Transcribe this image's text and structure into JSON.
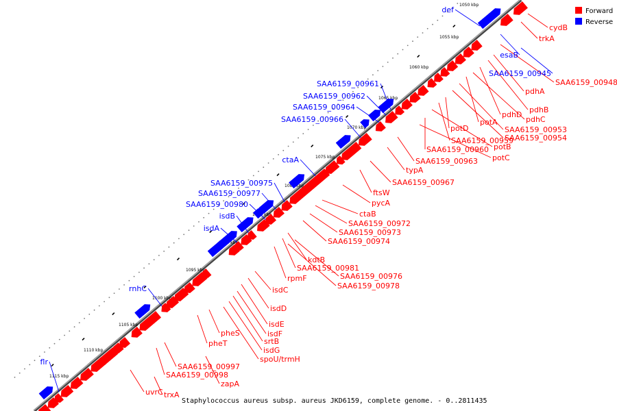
{
  "caption": "Staphylococcus aureus subsp. aureus JKD6159, complete genome. - 0..2811435",
  "legend": {
    "items": [
      {
        "label": "Forward",
        "color": "#ff0000"
      },
      {
        "label": "Reverse",
        "color": "#0000ff"
      }
    ]
  },
  "colors": {
    "forward": "#ff0000",
    "reverse": "#0000ff",
    "backbone": "#888888"
  },
  "kbp_labels": [
    "1050 kbp",
    "1055 kbp",
    "1060 kbp",
    "1065 kbp",
    "1070 kbp",
    "1075 kbp",
    "1080 kbp",
    "1085 kbp",
    "1090 kbp",
    "1095 kbp",
    "1100 kbp",
    "1105 kbp",
    "1110 kbp",
    "1115 kbp"
  ],
  "reverse_labels": [
    "def",
    "esaB",
    "SAA6159_00945",
    "SAA6159_00961",
    "SAA6159_00962",
    "SAA6159_00964",
    "SAA6159_00966",
    "ctaA",
    "SAA6159_00975",
    "SAA6159_00977",
    "SAA6159_00980",
    "isdB",
    "isdA",
    "rnhC",
    "flr"
  ],
  "forward_labels": [
    "cydB",
    "trkA",
    "SAA6159_00948",
    "pdhA",
    "pdhB",
    "pdhD",
    "pdhC",
    "potA",
    "SAA6159_00953",
    "SAA6159_00954",
    "potD",
    "SAA6159_00959",
    "potB",
    "SAA6159_00960",
    "potC",
    "SAA6159_00963",
    "typA",
    "SAA6159_00967",
    "ftsW",
    "pycA",
    "ctaB",
    "SAA6159_00972",
    "SAA6159_00973",
    "SAA6159_00974",
    "kdtB",
    "SAA6159_00981",
    "SAA6159_00976",
    "SAA6159_00978",
    "rpmF",
    "isdC",
    "isdD",
    "isdE",
    "isdF",
    "srtB",
    "isdG",
    "spoU/trmH",
    "pheS",
    "pheT",
    "SAA6159_00997",
    "SAA6159_00998",
    "zapA",
    "uvrC",
    "trxA"
  ]
}
